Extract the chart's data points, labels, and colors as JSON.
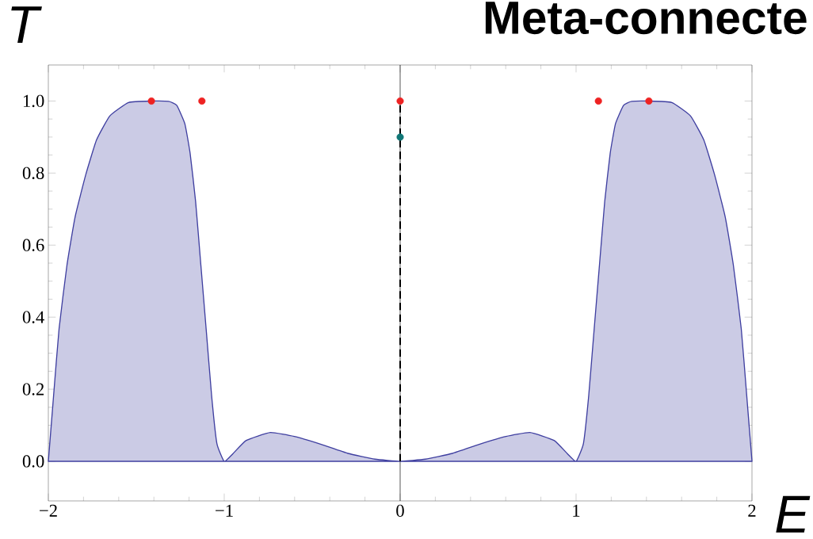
{
  "chart_data": {
    "type": "area",
    "title": "Meta-connecte",
    "xlabel": "E",
    "ylabel": "T",
    "xlim": [
      -2,
      2
    ],
    "ylim": [
      -0.11,
      1.1
    ],
    "xticks": [
      {
        "value": -2,
        "label": "−2"
      },
      {
        "value": -1,
        "label": "−1"
      },
      0,
      1,
      2
    ],
    "yticks": [
      {
        "value": 0,
        "label": "0.0"
      },
      {
        "value": 0.2,
        "label": "0.2"
      },
      {
        "value": 0.4,
        "label": "0.4"
      },
      {
        "value": 0.6,
        "label": "0.6"
      },
      {
        "value": 0.8,
        "label": "0.8"
      },
      {
        "value": 1,
        "label": "1.0"
      }
    ],
    "ref_lines": [
      {
        "axis": "x",
        "value": 0,
        "color": "#000000",
        "line_style": "solid"
      }
    ],
    "series": [
      {
        "color": "#3f3fa0",
        "x": [
          -2,
          -1.97,
          -1.939,
          -1.894,
          -1.848,
          -1.787,
          -1.726,
          -1.65,
          -1.544,
          -1.414,
          -1.316,
          -1.27,
          -1.224,
          -1.194,
          -1.163,
          -1.133,
          -1.103,
          -1.072,
          -1.042,
          -1.0,
          -0.951,
          -0.875,
          -0.738,
          -0.601,
          -0.449,
          -0.297,
          -0.144,
          0,
          0.144,
          0.297,
          0.449,
          0.601,
          0.738,
          0.875,
          0.951,
          1.0,
          1.042,
          1.072,
          1.103,
          1.133,
          1.163,
          1.194,
          1.224,
          1.27,
          1.316,
          1.414,
          1.544,
          1.65,
          1.726,
          1.787,
          1.848,
          1.894,
          1.939,
          1.97,
          2
        ],
        "values": [
          0,
          0.183,
          0.368,
          0.545,
          0.678,
          0.796,
          0.892,
          0.959,
          0.996,
          1.0,
          0.999,
          0.988,
          0.937,
          0.855,
          0.722,
          0.545,
          0.368,
          0.183,
          0.05,
          0,
          0.021,
          0.058,
          0.08,
          0.069,
          0.047,
          0.022,
          0.006,
          0,
          0.006,
          0.022,
          0.047,
          0.069,
          0.08,
          0.058,
          0.021,
          0,
          0.05,
          0.183,
          0.368,
          0.545,
          0.722,
          0.855,
          0.937,
          0.988,
          0.999,
          1.0,
          0.996,
          0.959,
          0.892,
          0.796,
          0.678,
          0.545,
          0.368,
          0.183,
          0
        ]
      },
      {
        "type": "line",
        "color": "#000000",
        "line_style": "dashed",
        "x": [
          0,
          0
        ],
        "values": [
          0,
          1
        ]
      },
      {
        "type": "scatter",
        "color": "#ee2222",
        "marker": "circle",
        "x": [
          -1.414,
          -1.127,
          0,
          1.127,
          1.414
        ],
        "values": [
          1,
          1,
          1,
          1,
          1
        ]
      },
      {
        "type": "scatter",
        "color": "#117777",
        "marker": "circle",
        "x": [
          0
        ],
        "values": [
          0.9
        ]
      }
    ]
  }
}
